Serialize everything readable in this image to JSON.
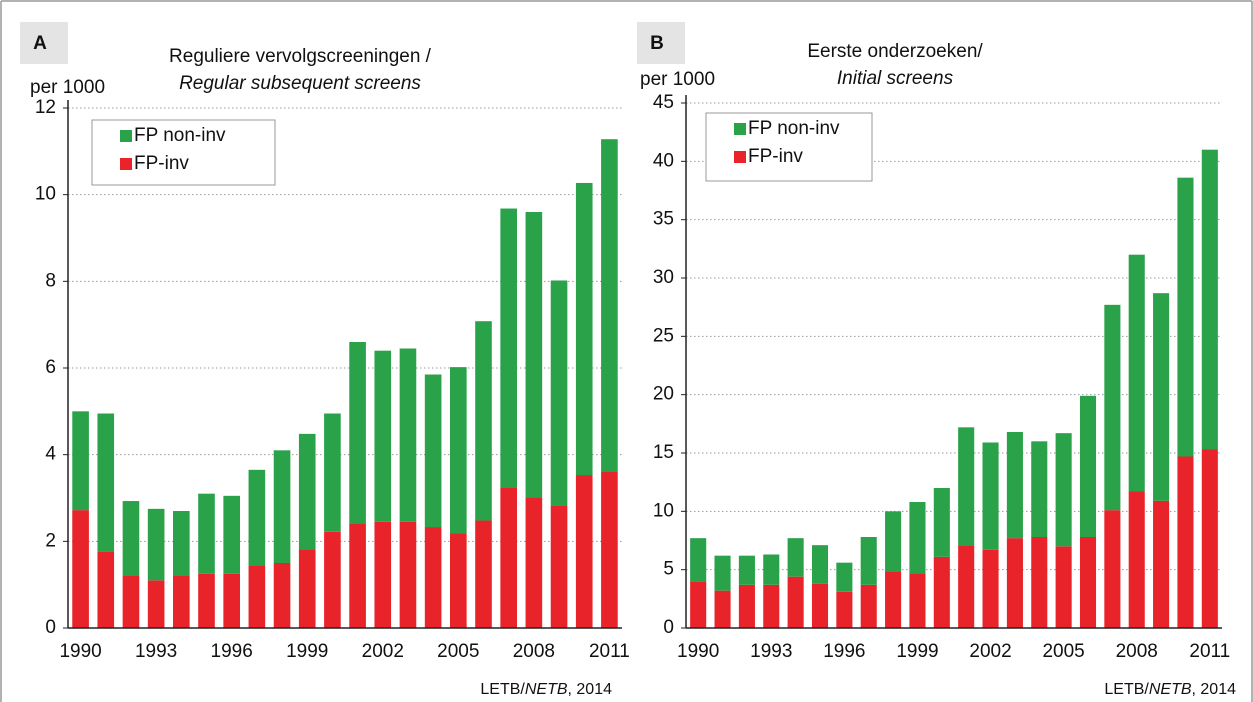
{
  "chart_data": [
    {
      "type": "bar",
      "stacked": true,
      "panel": "A",
      "title": "Reguliere vervolgscreeningen /",
      "subtitle": "Regular subsequent screens",
      "y_label": "per 1000",
      "source": [
        "LETB/",
        "NETB",
        ", 2014"
      ],
      "categories": [
        "1990",
        null,
        null,
        "1993",
        null,
        null,
        "1996",
        null,
        null,
        "1999",
        null,
        null,
        "2002",
        null,
        null,
        "2005",
        null,
        null,
        "2008",
        null,
        null,
        "2011"
      ],
      "series": [
        {
          "name": "FP-inv",
          "color": "#e8232a",
          "values": [
            2.72,
            1.77,
            1.2,
            1.1,
            1.2,
            1.25,
            1.25,
            1.45,
            1.5,
            1.8,
            2.22,
            2.4,
            2.45,
            2.45,
            2.33,
            2.18,
            2.48,
            3.25,
            3.02,
            2.83,
            3.53,
            3.6
          ]
        },
        {
          "name": "FP non-inv",
          "color": "#2aa24a",
          "values": [
            2.28,
            3.18,
            1.73,
            1.65,
            1.5,
            1.85,
            1.8,
            2.2,
            2.6,
            2.68,
            2.73,
            4.2,
            3.95,
            4.0,
            3.52,
            3.84,
            4.6,
            6.43,
            6.58,
            5.19,
            6.74,
            7.68
          ]
        }
      ],
      "ylim": [
        0,
        12
      ],
      "yticks": [
        0,
        2,
        4,
        6,
        8,
        10,
        12
      ],
      "grid": true,
      "legend": "top-left"
    },
    {
      "type": "bar",
      "stacked": true,
      "panel": "B",
      "title": "Eerste onderzoeken/",
      "subtitle": "Initial screens",
      "y_label": "per 1000",
      "source": [
        "LETB/",
        "NETB",
        ", 2014"
      ],
      "categories": [
        "1990",
        null,
        null,
        "1993",
        null,
        null,
        "1996",
        null,
        null,
        "1999",
        null,
        null,
        "2002",
        null,
        null,
        "2005",
        null,
        null,
        "2008",
        null,
        null,
        "2011"
      ],
      "series": [
        {
          "name": "FP-inv",
          "color": "#e8232a",
          "values": [
            4.0,
            3.2,
            3.7,
            3.7,
            4.4,
            3.8,
            3.1,
            3.7,
            4.8,
            4.7,
            6.1,
            7.1,
            6.7,
            7.7,
            7.8,
            7.0,
            7.8,
            10.1,
            11.7,
            10.9,
            14.7,
            15.3
          ]
        },
        {
          "name": "FP non-inv",
          "color": "#2aa24a",
          "values": [
            3.7,
            3.0,
            2.5,
            2.6,
            3.3,
            3.3,
            2.5,
            4.1,
            5.2,
            6.1,
            5.9,
            10.1,
            9.2,
            9.1,
            8.2,
            9.7,
            12.1,
            17.6,
            20.3,
            17.8,
            23.9,
            25.7
          ]
        }
      ],
      "ylim": [
        0,
        45
      ],
      "yticks": [
        0,
        5,
        10,
        15,
        20,
        25,
        30,
        35,
        40,
        45
      ],
      "grid": true,
      "legend": "top-left"
    }
  ]
}
